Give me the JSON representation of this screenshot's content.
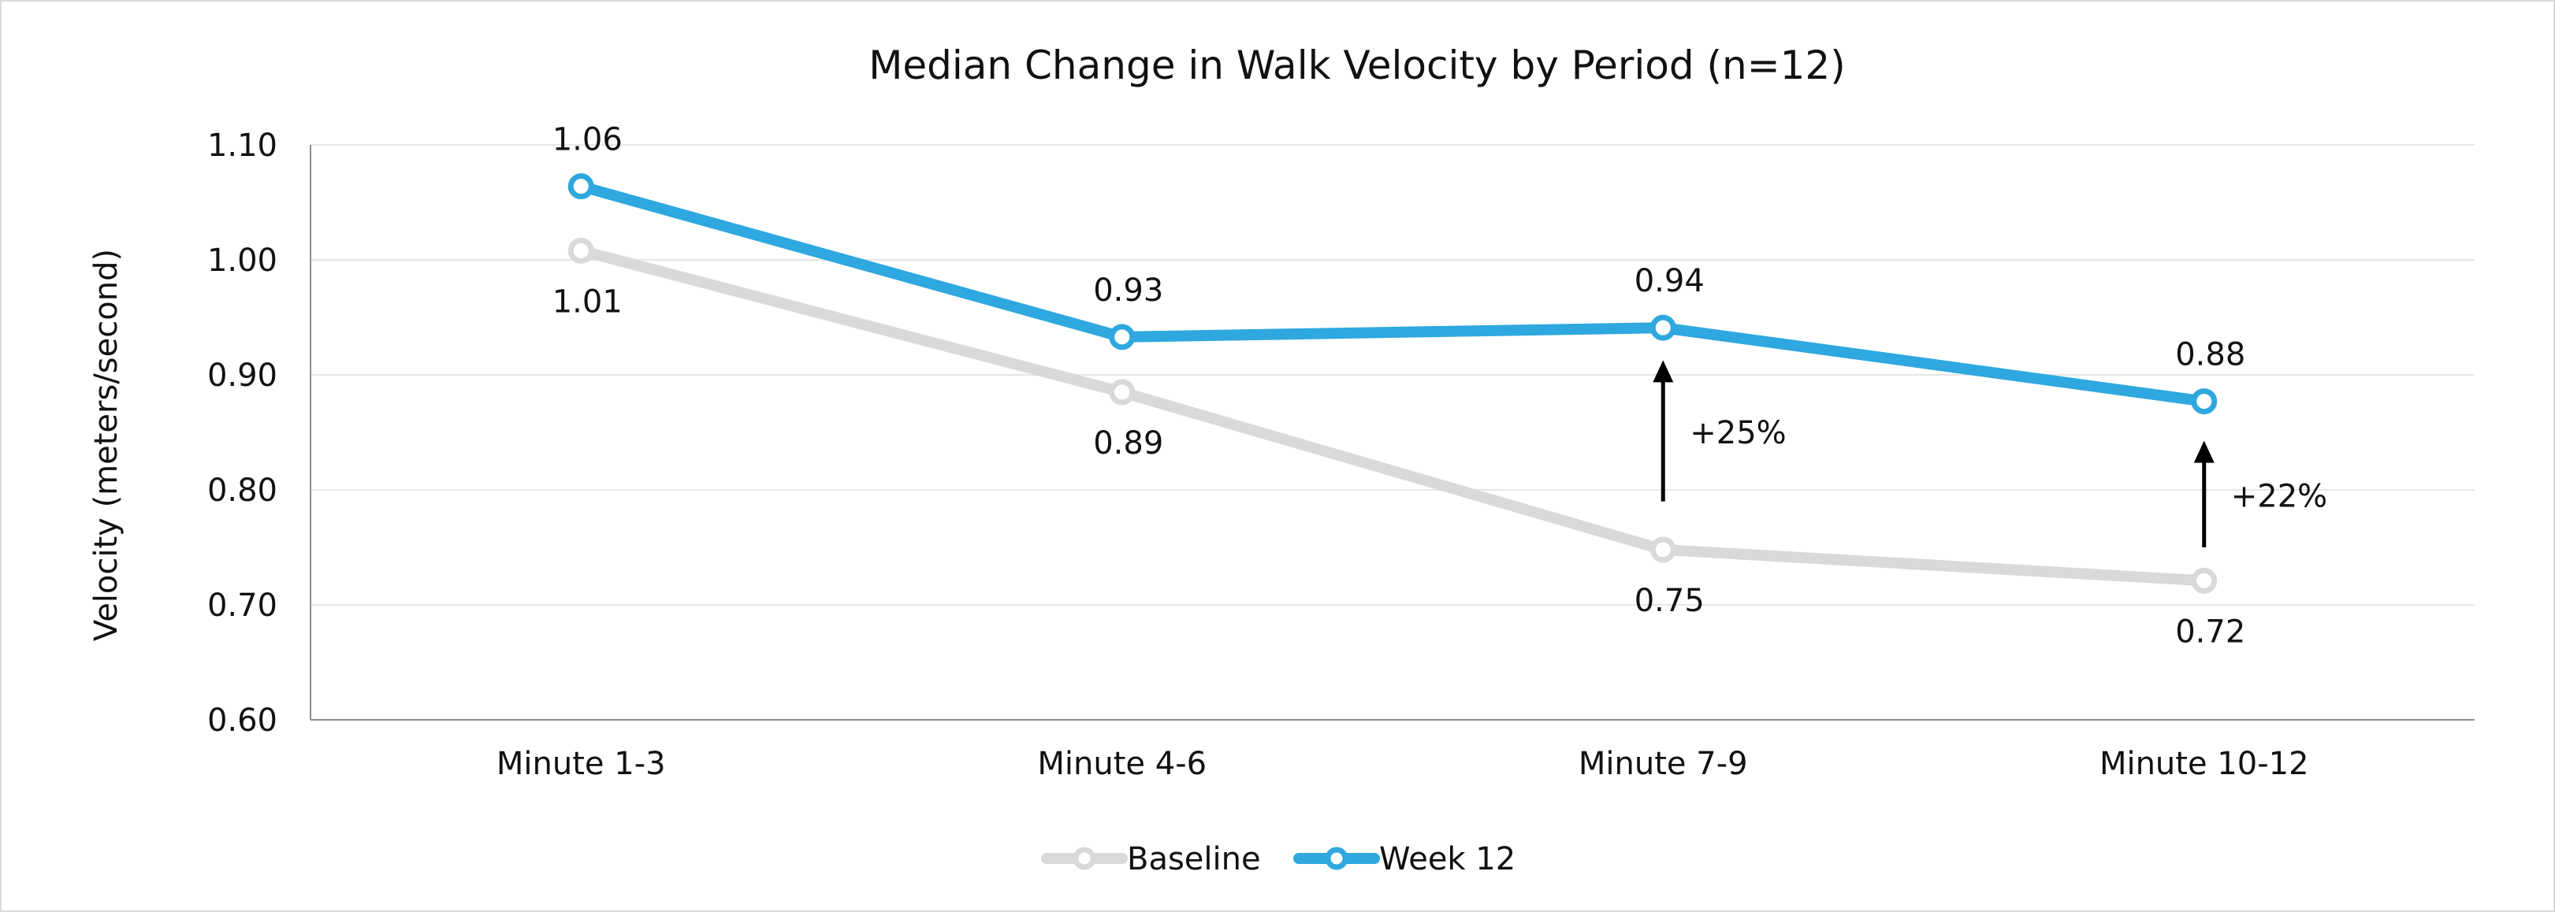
{
  "chart_data": {
    "type": "line",
    "title": "Median Change in Walk Velocity by Period (n=12)",
    "xlabel": "",
    "ylabel": "Velocity (meters/second)",
    "ylim": [
      0.6,
      1.1
    ],
    "yticks": [
      "0.60",
      "0.70",
      "0.80",
      "0.90",
      "1.00",
      "1.10"
    ],
    "grid": true,
    "legend_position": "bottom",
    "categories": [
      "Minute 1-3",
      "Minute 4-6",
      "Minute 7-9",
      "Minute 10-12"
    ],
    "series": [
      {
        "name": "Baseline",
        "color": "#d9d9d9",
        "values": [
          1.008,
          0.885,
          0.748,
          0.721
        ],
        "labels": [
          "1.01",
          "0.89",
          "0.75",
          "0.72"
        ],
        "label_position": "below"
      },
      {
        "name": "Week 12",
        "color": "#2ea8df",
        "values": [
          1.064,
          0.933,
          0.941,
          0.877
        ],
        "labels": [
          "1.06",
          "0.93",
          "0.94",
          "0.88"
        ],
        "label_position": "above"
      }
    ],
    "annotations": [
      {
        "category": "Minute 7-9",
        "from": 0.79,
        "to": 0.91,
        "text": "+25%"
      },
      {
        "category": "Minute 10-12",
        "from": 0.75,
        "to": 0.84,
        "text": "+22%"
      }
    ]
  }
}
